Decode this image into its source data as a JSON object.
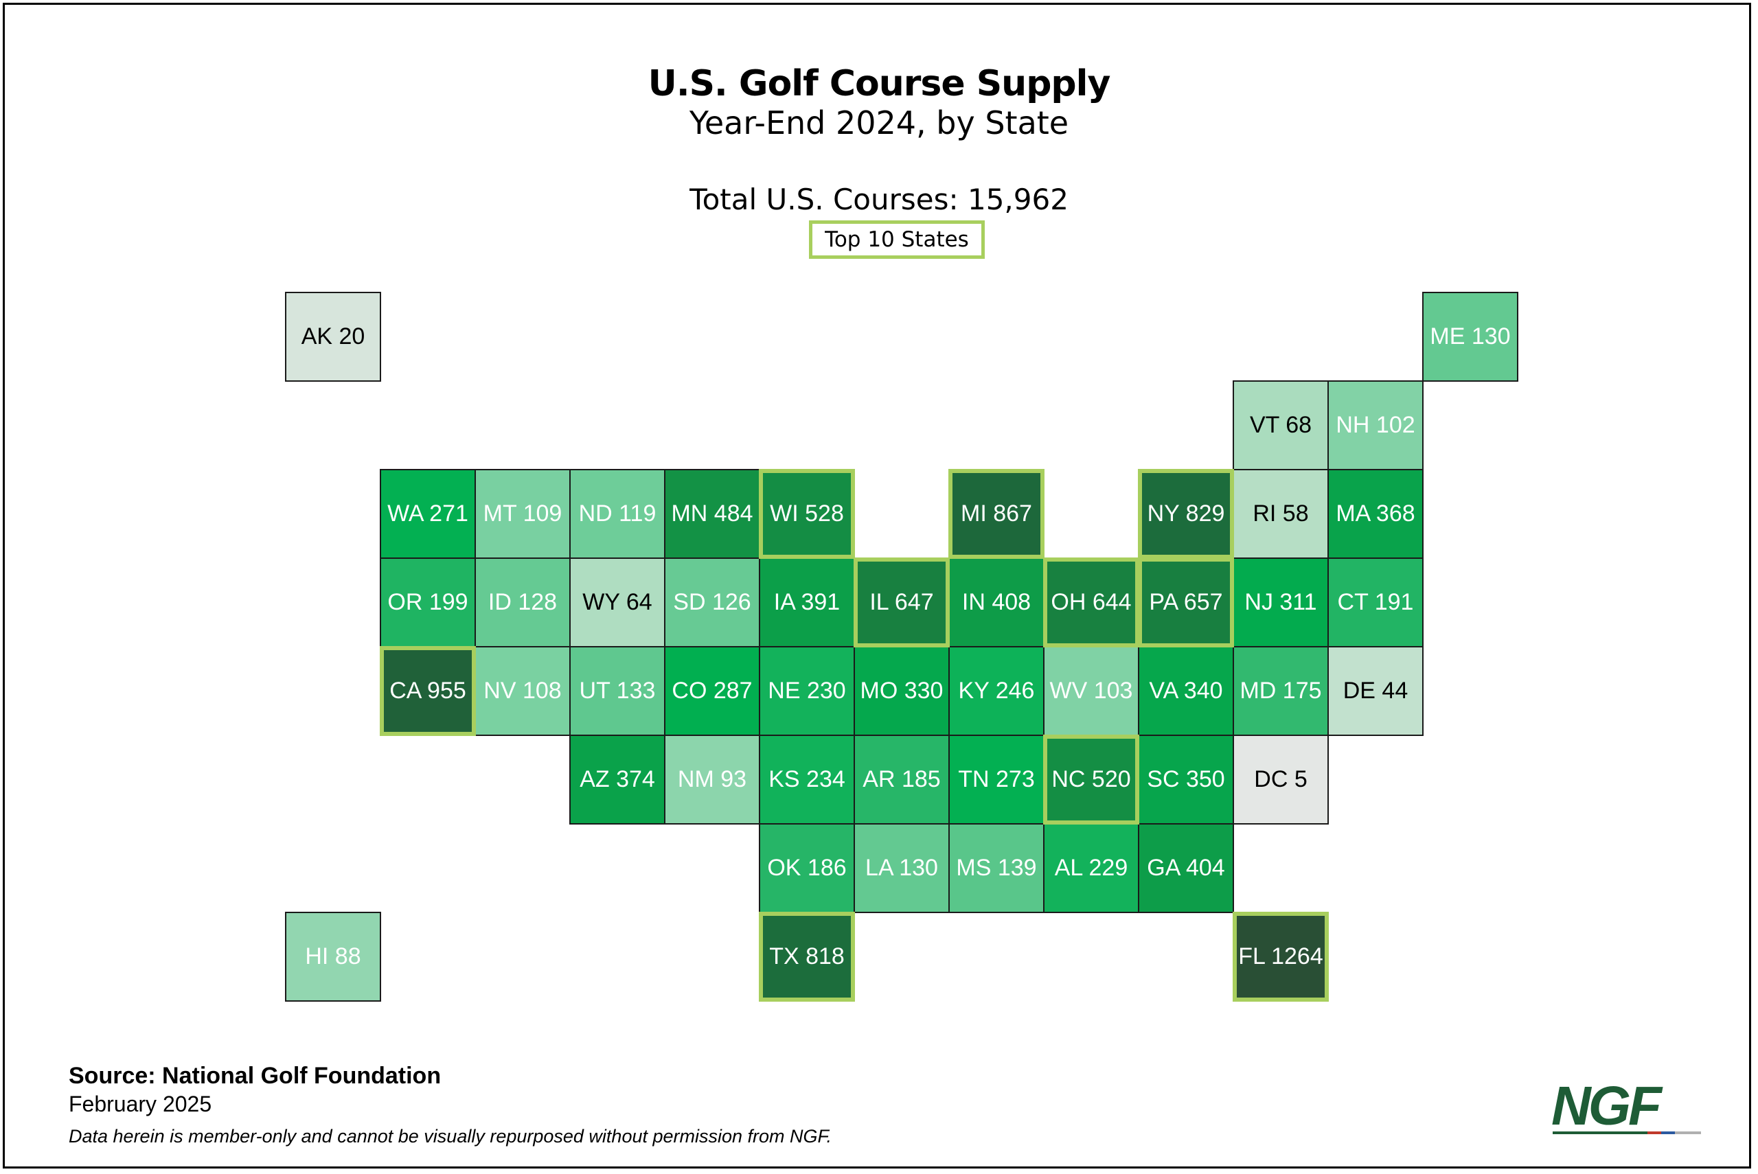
{
  "header": {
    "title": "U.S. Golf Course Supply",
    "subtitle": "Year-End 2024, by State",
    "total": "Total U.S. Courses: 15,962",
    "legend_label": "Top 10 States"
  },
  "colors": {
    "top10_outline": "#a8cf5e",
    "scale_low": "#e8e8e8",
    "scale_mid": "#00b050",
    "scale_high": "#2a4d35"
  },
  "states": [
    {
      "abbr": "AK",
      "value": 20,
      "row": 0,
      "col": 0,
      "top10": false
    },
    {
      "abbr": "ME",
      "value": 130,
      "row": 0,
      "col": 12,
      "top10": false
    },
    {
      "abbr": "VT",
      "value": 68,
      "row": 1,
      "col": 10,
      "top10": false
    },
    {
      "abbr": "NH",
      "value": 102,
      "row": 1,
      "col": 11,
      "top10": false
    },
    {
      "abbr": "WA",
      "value": 271,
      "row": 2,
      "col": 1,
      "top10": false
    },
    {
      "abbr": "MT",
      "value": 109,
      "row": 2,
      "col": 2,
      "top10": false
    },
    {
      "abbr": "ND",
      "value": 119,
      "row": 2,
      "col": 3,
      "top10": false
    },
    {
      "abbr": "MN",
      "value": 484,
      "row": 2,
      "col": 4,
      "top10": false
    },
    {
      "abbr": "WI",
      "value": 528,
      "row": 2,
      "col": 5,
      "top10": true
    },
    {
      "abbr": "MI",
      "value": 867,
      "row": 2,
      "col": 7,
      "top10": true
    },
    {
      "abbr": "NY",
      "value": 829,
      "row": 2,
      "col": 9,
      "top10": true
    },
    {
      "abbr": "RI",
      "value": 58,
      "row": 2,
      "col": 10,
      "top10": false
    },
    {
      "abbr": "MA",
      "value": 368,
      "row": 2,
      "col": 11,
      "top10": false
    },
    {
      "abbr": "OR",
      "value": 199,
      "row": 3,
      "col": 1,
      "top10": false
    },
    {
      "abbr": "ID",
      "value": 128,
      "row": 3,
      "col": 2,
      "top10": false
    },
    {
      "abbr": "WY",
      "value": 64,
      "row": 3,
      "col": 3,
      "top10": false
    },
    {
      "abbr": "SD",
      "value": 126,
      "row": 3,
      "col": 4,
      "top10": false
    },
    {
      "abbr": "IA",
      "value": 391,
      "row": 3,
      "col": 5,
      "top10": false
    },
    {
      "abbr": "IL",
      "value": 647,
      "row": 3,
      "col": 6,
      "top10": true
    },
    {
      "abbr": "IN",
      "value": 408,
      "row": 3,
      "col": 7,
      "top10": false
    },
    {
      "abbr": "OH",
      "value": 644,
      "row": 3,
      "col": 8,
      "top10": true
    },
    {
      "abbr": "PA",
      "value": 657,
      "row": 3,
      "col": 9,
      "top10": true
    },
    {
      "abbr": "NJ",
      "value": 311,
      "row": 3,
      "col": 10,
      "top10": false
    },
    {
      "abbr": "CT",
      "value": 191,
      "row": 3,
      "col": 11,
      "top10": false
    },
    {
      "abbr": "CA",
      "value": 955,
      "row": 4,
      "col": 1,
      "top10": true
    },
    {
      "abbr": "NV",
      "value": 108,
      "row": 4,
      "col": 2,
      "top10": false
    },
    {
      "abbr": "UT",
      "value": 133,
      "row": 4,
      "col": 3,
      "top10": false
    },
    {
      "abbr": "CO",
      "value": 287,
      "row": 4,
      "col": 4,
      "top10": false
    },
    {
      "abbr": "NE",
      "value": 230,
      "row": 4,
      "col": 5,
      "top10": false
    },
    {
      "abbr": "MO",
      "value": 330,
      "row": 4,
      "col": 6,
      "top10": false
    },
    {
      "abbr": "KY",
      "value": 246,
      "row": 4,
      "col": 7,
      "top10": false
    },
    {
      "abbr": "WV",
      "value": 103,
      "row": 4,
      "col": 8,
      "top10": false
    },
    {
      "abbr": "VA",
      "value": 340,
      "row": 4,
      "col": 9,
      "top10": false
    },
    {
      "abbr": "MD",
      "value": 175,
      "row": 4,
      "col": 10,
      "top10": false
    },
    {
      "abbr": "DE",
      "value": 44,
      "row": 4,
      "col": 11,
      "top10": false
    },
    {
      "abbr": "AZ",
      "value": 374,
      "row": 5,
      "col": 3,
      "top10": false
    },
    {
      "abbr": "NM",
      "value": 93,
      "row": 5,
      "col": 4,
      "top10": false
    },
    {
      "abbr": "KS",
      "value": 234,
      "row": 5,
      "col": 5,
      "top10": false
    },
    {
      "abbr": "AR",
      "value": 185,
      "row": 5,
      "col": 6,
      "top10": false
    },
    {
      "abbr": "TN",
      "value": 273,
      "row": 5,
      "col": 7,
      "top10": false
    },
    {
      "abbr": "NC",
      "value": 520,
      "row": 5,
      "col": 8,
      "top10": true
    },
    {
      "abbr": "SC",
      "value": 350,
      "row": 5,
      "col": 9,
      "top10": false
    },
    {
      "abbr": "DC",
      "value": 5,
      "row": 5,
      "col": 10,
      "top10": false
    },
    {
      "abbr": "OK",
      "value": 186,
      "row": 6,
      "col": 5,
      "top10": false
    },
    {
      "abbr": "LA",
      "value": 130,
      "row": 6,
      "col": 6,
      "top10": false
    },
    {
      "abbr": "MS",
      "value": 139,
      "row": 6,
      "col": 7,
      "top10": false
    },
    {
      "abbr": "AL",
      "value": 229,
      "row": 6,
      "col": 8,
      "top10": false
    },
    {
      "abbr": "GA",
      "value": 404,
      "row": 6,
      "col": 9,
      "top10": false
    },
    {
      "abbr": "HI",
      "value": 88,
      "row": 7,
      "col": 0,
      "top10": false
    },
    {
      "abbr": "TX",
      "value": 818,
      "row": 7,
      "col": 5,
      "top10": true
    },
    {
      "abbr": "FL",
      "value": 1264,
      "row": 7,
      "col": 10,
      "top10": true
    }
  ],
  "footer": {
    "source": "Source: National Golf Foundation",
    "date": "February 2025",
    "disclaimer": "Data herein is member-only and cannot be visually repurposed without permission from NGF.",
    "logo_text": "NGF"
  }
}
